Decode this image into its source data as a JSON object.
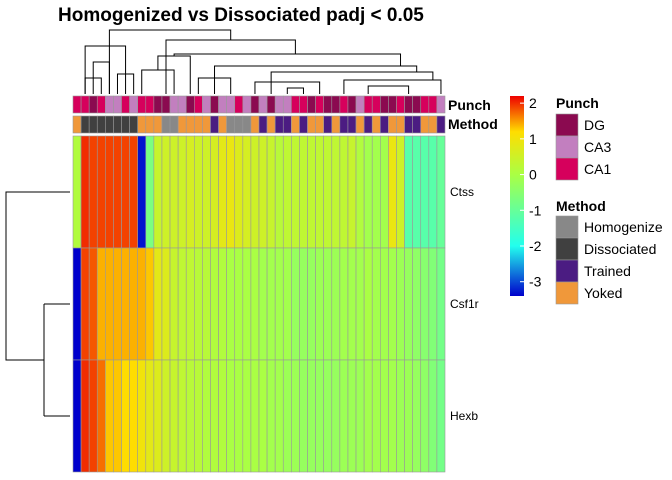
{
  "chart_data": {
    "type": "heatmap",
    "title": "Homogenized vs Dissociated padj < 0.05",
    "rows": [
      "Ctss",
      "Csf1r",
      "Hexb"
    ],
    "row_values": [
      [
        0.1,
        2.0,
        1.9,
        1.9,
        1.9,
        1.9,
        1.9,
        1.9,
        -3.3,
        -0.7,
        0.4,
        0.5,
        0.5,
        0.5,
        0.6,
        0.5,
        0.5,
        0.6,
        0.8,
        0.9,
        0.7,
        0.6,
        0.5,
        0.5,
        0.4,
        0.2,
        0.3,
        0.3,
        0.3,
        0.3,
        0.3,
        0.3,
        0.3,
        0.3,
        0.4,
        0.1,
        -0.1,
        -0.1,
        -0.1,
        0.9,
        0.5,
        -1.2,
        -1.2,
        -1.2,
        -1.2,
        -1.0
      ],
      [
        -3.4,
        1.9,
        1.8,
        1.4,
        1.4,
        1.4,
        1.4,
        1.4,
        1.4,
        1.3,
        0.8,
        0.7,
        0.4,
        0.3,
        0.3,
        0.2,
        0.2,
        0.1,
        0.1,
        0.0,
        0.0,
        0.0,
        0.0,
        -0.1,
        -0.1,
        -0.1,
        -0.1,
        -0.3,
        -0.3,
        -0.3,
        -0.2,
        -0.2,
        -0.2,
        -0.1,
        -0.1,
        -0.1,
        0.0,
        -0.1,
        -0.1,
        -0.1,
        -0.2,
        -0.3,
        -0.4,
        -0.5,
        -0.6,
        -0.8
      ],
      [
        -3.4,
        2.0,
        1.9,
        1.7,
        1.3,
        1.3,
        1.2,
        1.2,
        1.0,
        0.8,
        0.7,
        0.5,
        0.4,
        0.3,
        0.2,
        0.2,
        0.1,
        0.1,
        0.1,
        0.0,
        0.0,
        0.0,
        0.0,
        0.0,
        -0.1,
        -0.1,
        -0.2,
        -0.2,
        -0.3,
        -0.3,
        -0.3,
        -0.3,
        -0.3,
        -0.2,
        -0.2,
        -0.2,
        -0.1,
        -0.1,
        -0.1,
        -0.1,
        -0.2,
        -0.2,
        -0.3,
        -0.4,
        -0.6,
        -0.8
      ]
    ],
    "color_scale": {
      "breaks": [
        -3.4,
        -2,
        0,
        1.2,
        2.2
      ],
      "colors": [
        "#0000cc",
        "#22ffee",
        "#aaff44",
        "#ffdd00",
        "#ee0000"
      ],
      "ticks": [
        2,
        1,
        0,
        -1,
        -2,
        -3
      ]
    },
    "annotations": [
      {
        "name": "Punch",
        "levels": {
          "DG": "#8b0a50",
          "CA3": "#c27fbf",
          "CA1": "#d6005c"
        },
        "values": [
          "CA1",
          "CA1",
          "DG",
          "CA1",
          "CA3",
          "CA3",
          "CA1",
          "CA3",
          "CA1",
          "CA1",
          "DG",
          "DG",
          "CA3",
          "CA3",
          "DG",
          "CA1",
          "CA3",
          "DG",
          "CA3",
          "CA3",
          "CA1",
          "CA3",
          "DG",
          "CA3",
          "DG",
          "CA3",
          "CA3",
          "CA1",
          "CA1",
          "DG",
          "CA1",
          "DG",
          "DG",
          "CA1",
          "DG",
          "CA3",
          "CA1",
          "CA1",
          "DG",
          "DG",
          "CA1",
          "DG",
          "DG",
          "CA1",
          "CA1",
          "CA3"
        ]
      },
      {
        "name": "Method",
        "levels": {
          "Homogenized": "#888888",
          "Dissociated": "#404040",
          "Trained": "#4b1c82",
          "Yoked": "#f0983a"
        },
        "values": [
          "Yoked",
          "Dissociated",
          "Dissociated",
          "Dissociated",
          "Dissociated",
          "Dissociated",
          "Dissociated",
          "Dissociated",
          "Yoked",
          "Yoked",
          "Yoked",
          "Homogenized",
          "Homogenized",
          "Yoked",
          "Yoked",
          "Yoked",
          "Yoked",
          "Trained",
          "Yoked",
          "Homogenized",
          "Homogenized",
          "Homogenized",
          "Yoked",
          "Trained",
          "Yoked",
          "Trained",
          "Trained",
          "Yoked",
          "Trained",
          "Yoked",
          "Yoked",
          "Trained",
          "Yoked",
          "Trained",
          "Trained",
          "Yoked",
          "Trained",
          "Yoked",
          "Trained",
          "Yoked",
          "Yoked",
          "Trained",
          "Trained",
          "Yoked",
          "Yoked",
          "Trained"
        ]
      }
    ],
    "legend": {
      "scale_ticks": [
        "2",
        "1",
        "0",
        "-1",
        "-2",
        "-3"
      ],
      "punch_title": "Punch",
      "punch_items": [
        "DG",
        "CA3",
        "CA1"
      ],
      "method_title": "Method",
      "method_items": [
        "Homogenize",
        "Dissociated",
        "Trained",
        "Yoked"
      ],
      "placement": "right"
    },
    "column_dendrogram": "shown on top",
    "row_dendrogram": "shown on left",
    "grid": "cell borders grey"
  }
}
